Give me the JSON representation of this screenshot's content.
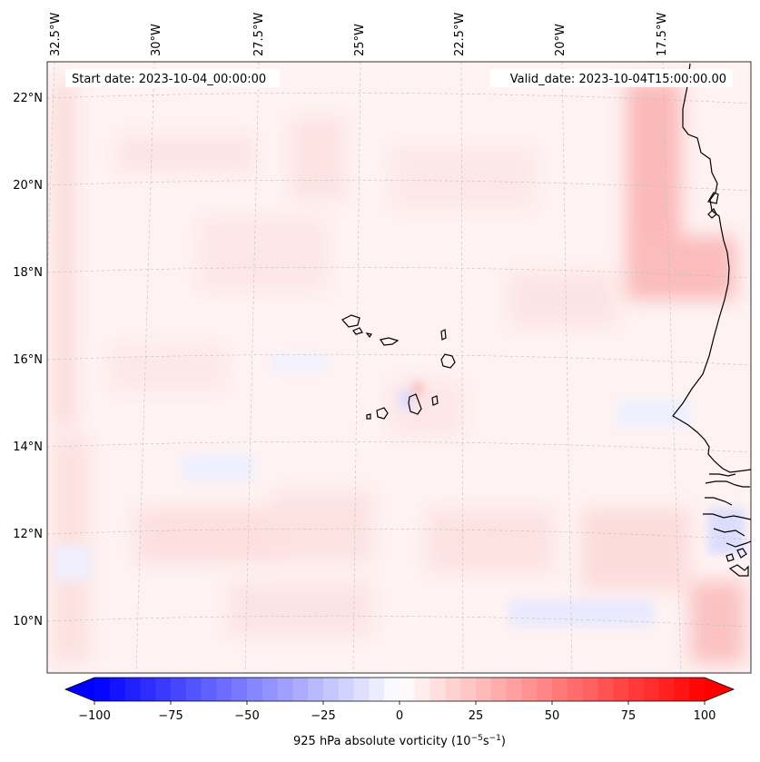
{
  "map": {
    "start_date_text": "Start date: 2023-10-04_00:00:00",
    "valid_date_text": "Valid_date: 2023-10-04T15:00:00.00",
    "longitude_labels": [
      "32.5°W",
      "30°W",
      "27.5°W",
      "25°W",
      "22.5°W",
      "20°W",
      "17.5°W"
    ],
    "latitude_labels": [
      "22°N",
      "20°N",
      "18°N",
      "16°N",
      "14°N",
      "12°N",
      "10°N"
    ],
    "field": "925 hPa absolute vorticity",
    "extent_deg": {
      "lon_min": -33.0,
      "lon_max": -15.5,
      "lat_min": 8.9,
      "lat_max": 22.8
    },
    "coastline_color": "#000000",
    "gridline_color": "#bdbdbd"
  },
  "colorbar": {
    "label_prefix": "925 hPa absolute vorticity (10",
    "label_exp1": "−5",
    "label_mid": "s",
    "label_exp2": "−1",
    "label_suffix": ")",
    "tick_labels": [
      "−100",
      "−75",
      "−50",
      "−25",
      "0",
      "25",
      "50",
      "75",
      "100"
    ],
    "vmin": -100,
    "vmax": 100,
    "levels": 41,
    "low_color": "#0000ff",
    "mid_color": "#ffffff",
    "high_color": "#ff0000",
    "extend": "both"
  }
}
